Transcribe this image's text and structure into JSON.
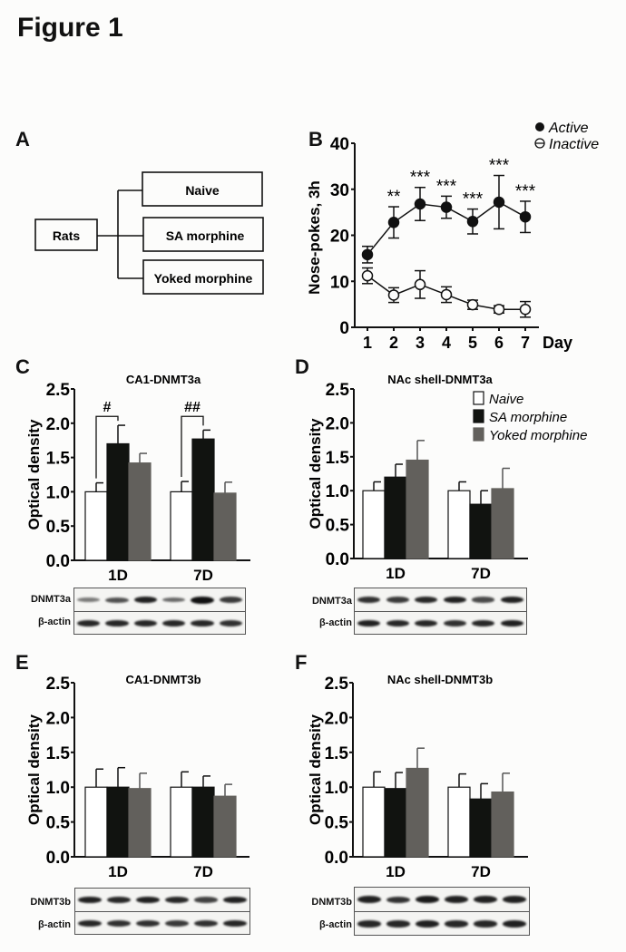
{
  "figure_title": "Figure 1",
  "panels": {
    "A": {
      "letter": "A",
      "root": "Rats",
      "groups": [
        "Naive",
        "SA morphine",
        "Yoked morphine"
      ]
    },
    "B": {
      "letter": "B"
    },
    "C": {
      "letter": "C",
      "blot": {
        "target_label": "DNMT3a",
        "control_label": "β-actin",
        "target_intensity": [
          0.35,
          0.6,
          0.9,
          0.45,
          1.0,
          0.75
        ],
        "control_intensity": [
          0.85,
          0.85,
          0.85,
          0.85,
          0.85,
          0.8
        ]
      }
    },
    "D": {
      "letter": "D",
      "blot": {
        "target_label": "DNMT3a",
        "control_label": "β-actin",
        "target_intensity": [
          0.8,
          0.75,
          0.85,
          0.9,
          0.65,
          0.9
        ],
        "control_intensity": [
          0.9,
          0.85,
          0.85,
          0.8,
          0.85,
          0.9
        ]
      }
    },
    "E": {
      "letter": "E",
      "blot": {
        "target_label": "DNMT3b",
        "control_label": "β-actin",
        "target_intensity": [
          0.9,
          0.85,
          0.9,
          0.85,
          0.7,
          0.9
        ],
        "control_intensity": [
          0.85,
          0.8,
          0.8,
          0.75,
          0.8,
          0.85
        ]
      }
    },
    "F": {
      "letter": "F",
      "blot": {
        "target_label": "DNMT3b",
        "control_label": "β-actin",
        "target_intensity": [
          0.9,
          0.8,
          0.95,
          0.9,
          0.9,
          0.9
        ],
        "control_intensity": [
          0.85,
          0.85,
          0.9,
          0.85,
          0.85,
          0.9
        ]
      }
    }
  },
  "chart_data": [
    {
      "id": "B",
      "type": "line",
      "title": "",
      "xlabel": "Day",
      "ylabel": "Nose-pokes, 3h",
      "x": [
        1,
        2,
        3,
        4,
        5,
        6,
        7
      ],
      "ylim": [
        0,
        40
      ],
      "yticks": [
        0,
        10,
        20,
        30,
        40
      ],
      "legend": {
        "placement": "top-right",
        "entries": [
          "Active",
          "Inactive"
        ]
      },
      "series": [
        {
          "name": "Active",
          "marker": "filled-circle",
          "values": [
            15.8,
            22.8,
            26.8,
            26.1,
            23.0,
            27.2,
            24.0
          ],
          "err": [
            1.8,
            3.4,
            3.6,
            2.4,
            2.7,
            5.8,
            3.4
          ]
        },
        {
          "name": "Inactive",
          "marker": "open-circle",
          "values": [
            11.2,
            7.0,
            9.3,
            7.1,
            4.9,
            3.9,
            3.9
          ],
          "err": [
            1.7,
            1.6,
            3.0,
            1.7,
            1.0,
            0.8,
            1.7
          ]
        }
      ],
      "annotations": [
        "",
        "**",
        "***",
        "***",
        "***",
        "***",
        "***"
      ]
    },
    {
      "id": "C",
      "type": "bar",
      "title": "CA1-DNMT3a",
      "xlabel": "",
      "ylabel": "Optical density",
      "categories": [
        "1D",
        "7D"
      ],
      "ylim": [
        0,
        2.5
      ],
      "yticks": [
        "0.0",
        "0.5",
        "1.0",
        "1.5",
        "2.0",
        "2.5"
      ],
      "series": [
        {
          "name": "Naive",
          "values": [
            1.0,
            1.0
          ],
          "err": [
            0.13,
            0.15
          ]
        },
        {
          "name": "SA morphine",
          "values": [
            1.7,
            1.77
          ],
          "err": [
            0.27,
            0.13
          ]
        },
        {
          "name": "Yoked morphine",
          "values": [
            1.42,
            0.98
          ],
          "err": [
            0.14,
            0.16
          ]
        }
      ],
      "significance": [
        {
          "category": "1D",
          "label": "#"
        },
        {
          "category": "7D",
          "label": "##"
        }
      ]
    },
    {
      "id": "D",
      "type": "bar",
      "title": "NAc shell-DNMT3a",
      "xlabel": "",
      "ylabel": "Optical density",
      "categories": [
        "1D",
        "7D"
      ],
      "ylim": [
        0,
        2.5
      ],
      "yticks": [
        "0.0",
        "0.5",
        "1.0",
        "1.5",
        "2.0",
        "2.5"
      ],
      "legend": {
        "placement": "top-right",
        "entries": [
          "Naive",
          "SA morphine",
          "Yoked morphine"
        ]
      },
      "series": [
        {
          "name": "Naive",
          "values": [
            1.0,
            1.0
          ],
          "err": [
            0.13,
            0.13
          ]
        },
        {
          "name": "SA morphine",
          "values": [
            1.2,
            0.8
          ],
          "err": [
            0.19,
            0.2
          ]
        },
        {
          "name": "Yoked morphine",
          "values": [
            1.45,
            1.03
          ],
          "err": [
            0.29,
            0.3
          ]
        }
      ]
    },
    {
      "id": "E",
      "type": "bar",
      "title": "CA1-DNMT3b",
      "xlabel": "",
      "ylabel": "Optical density",
      "categories": [
        "1D",
        "7D"
      ],
      "ylim": [
        0,
        2.5
      ],
      "yticks": [
        "0.0",
        "0.5",
        "1.0",
        "1.5",
        "2.0",
        "2.5"
      ],
      "series": [
        {
          "name": "Naive",
          "values": [
            1.0,
            1.0
          ],
          "err": [
            0.26,
            0.22
          ]
        },
        {
          "name": "SA morphine",
          "values": [
            1.0,
            1.0
          ],
          "err": [
            0.28,
            0.16
          ]
        },
        {
          "name": "Yoked morphine",
          "values": [
            0.98,
            0.87
          ],
          "err": [
            0.22,
            0.17
          ]
        }
      ]
    },
    {
      "id": "F",
      "type": "bar",
      "title": "NAc shell-DNMT3b",
      "xlabel": "",
      "ylabel": "Optical density",
      "categories": [
        "1D",
        "7D"
      ],
      "ylim": [
        0,
        2.5
      ],
      "yticks": [
        "0.0",
        "0.5",
        "1.0",
        "1.5",
        "2.0",
        "2.5"
      ],
      "series": [
        {
          "name": "Naive",
          "values": [
            1.0,
            1.0
          ],
          "err": [
            0.22,
            0.19
          ]
        },
        {
          "name": "SA morphine",
          "values": [
            0.98,
            0.83
          ],
          "err": [
            0.23,
            0.22
          ]
        },
        {
          "name": "Yoked morphine",
          "values": [
            1.27,
            0.93
          ],
          "err": [
            0.29,
            0.27
          ]
        }
      ]
    }
  ],
  "colors": {
    "naive": "#ffffff",
    "sa": "#111310",
    "yoked": "#62605c",
    "line": "#111111"
  }
}
